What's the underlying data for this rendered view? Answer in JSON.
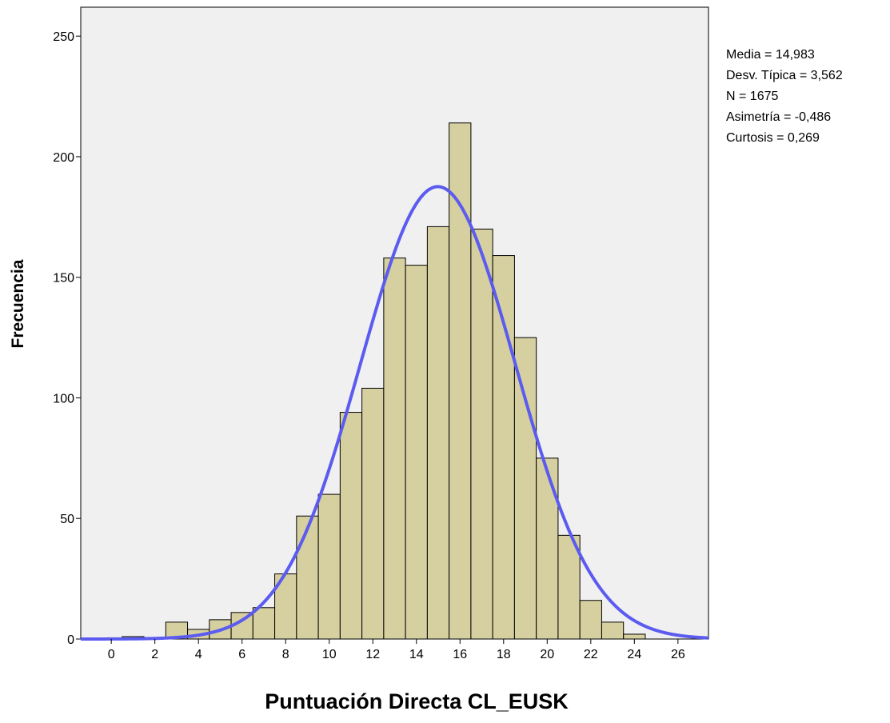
{
  "chart_data": {
    "type": "bar",
    "subtype": "histogram",
    "xlabel": "Puntuación Directa CL_EUSK",
    "ylabel": "Frecuencia",
    "xlim": [
      -1.4,
      27.4
    ],
    "ylim": [
      0,
      262
    ],
    "x_ticks": [
      0,
      2,
      4,
      6,
      8,
      10,
      12,
      14,
      16,
      18,
      20,
      22,
      24,
      26
    ],
    "y_ticks": [
      0,
      50,
      100,
      150,
      200,
      250
    ],
    "bin_width": 1,
    "bins": [
      {
        "x": 0,
        "value": 0
      },
      {
        "x": 1,
        "value": 1
      },
      {
        "x": 2,
        "value": 0
      },
      {
        "x": 3,
        "value": 7
      },
      {
        "x": 4,
        "value": 4
      },
      {
        "x": 5,
        "value": 8
      },
      {
        "x": 6,
        "value": 11
      },
      {
        "x": 7,
        "value": 13
      },
      {
        "x": 8,
        "value": 27
      },
      {
        "x": 9,
        "value": 51
      },
      {
        "x": 10,
        "value": 60
      },
      {
        "x": 11,
        "value": 94
      },
      {
        "x": 12,
        "value": 104
      },
      {
        "x": 13,
        "value": 158
      },
      {
        "x": 14,
        "value": 155
      },
      {
        "x": 15,
        "value": 171
      },
      {
        "x": 16,
        "value": 214
      },
      {
        "x": 17,
        "value": 170
      },
      {
        "x": 18,
        "value": 159
      },
      {
        "x": 19,
        "value": 125
      },
      {
        "x": 20,
        "value": 75
      },
      {
        "x": 21,
        "value": 43
      },
      {
        "x": 22,
        "value": 16
      },
      {
        "x": 23,
        "value": 7
      },
      {
        "x": 24,
        "value": 2
      }
    ],
    "normal_curve": {
      "mean": 14.983,
      "sd": 3.562,
      "n": 1675,
      "color": "#5b5bf0"
    },
    "bar_color": "#d6d0a0",
    "plot_background": "#f0f0f0",
    "grid": false
  },
  "stats": {
    "media": "Media = 14,983",
    "desv": "Desv. Típica = 3,562",
    "n": "N = 1675",
    "asimetria": "Asimetría = -0,486",
    "curtosis": "Curtosis = 0,269"
  }
}
